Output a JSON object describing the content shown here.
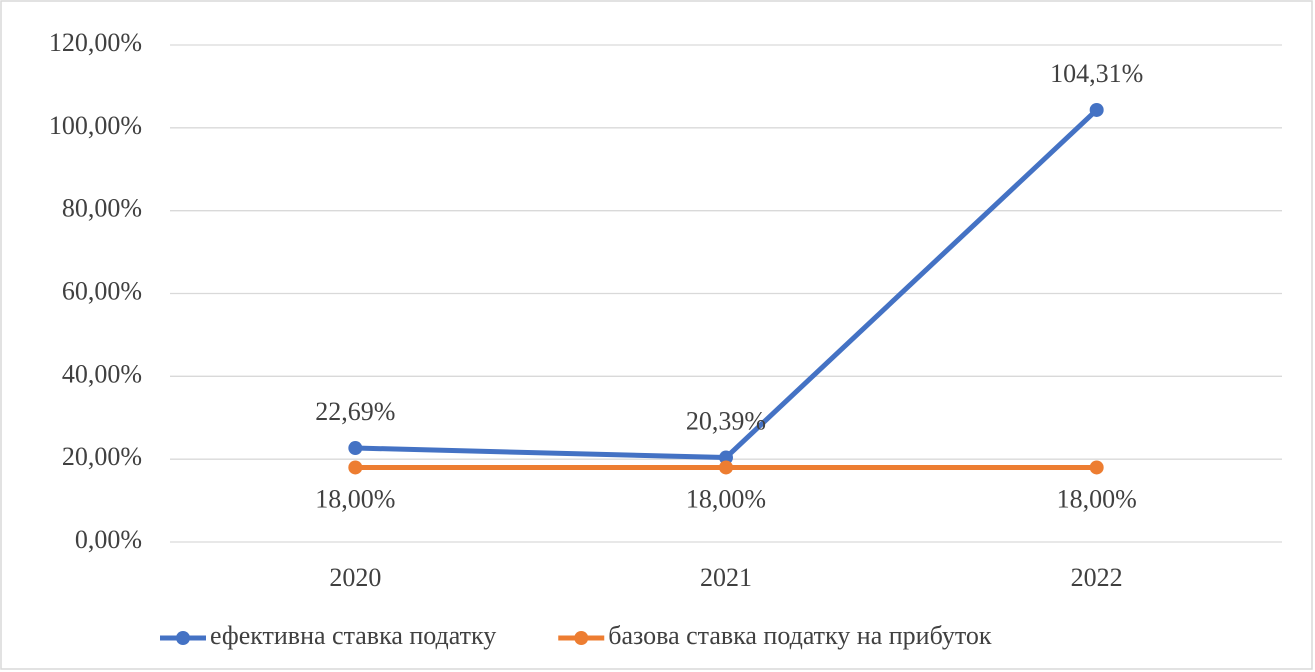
{
  "chart_data": {
    "type": "line",
    "categories": [
      "2020",
      "2021",
      "2022"
    ],
    "series": [
      {
        "name": "ефективна ставка податку",
        "color": "#4472c4",
        "values": [
          22.69,
          20.39,
          104.31
        ],
        "value_labels": [
          "22,69%",
          "20,39%",
          "104,31%"
        ]
      },
      {
        "name": "базова ставка податку на прибуток",
        "color": "#ed7d31",
        "values": [
          18,
          18,
          18
        ],
        "value_labels": [
          "18,00%",
          "18,00%",
          "18,00%"
        ]
      }
    ],
    "ylim": [
      0,
      120
    ],
    "yticks": [
      {
        "value": 0,
        "label": "0,00%"
      },
      {
        "value": 20,
        "label": "20,00%"
      },
      {
        "value": 40,
        "label": "40,00%"
      },
      {
        "value": 60,
        "label": "60,00%"
      },
      {
        "value": 80,
        "label": "80,00%"
      },
      {
        "value": 100,
        "label": "100,00%"
      },
      {
        "value": 120,
        "label": "120,00%"
      }
    ],
    "grid": true,
    "legend": "bottom"
  }
}
